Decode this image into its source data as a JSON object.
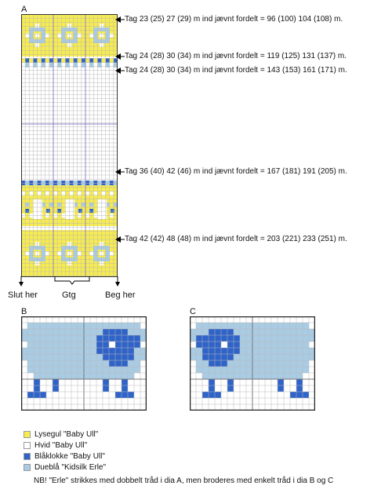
{
  "chart_a": {
    "label": "A",
    "annotations": [
      "Tag 23 (25) 27 (29) m ind jævnt fordelt = 96 (100) 104 (108) m.",
      "Tag 24 (28) 30 (34) m ind jævnt fordelt = 119 (125) 131 (137) m.",
      "Tag 24 (28) 30 (34) m ind jævnt fordelt = 143 (153) 161 (171) m.",
      "Tag 36 (40) 42 (46) m ind jævnt fordelt = 167 (181) 191 (205) m.",
      "Tag 42 (42) 48 (48) m ind jævnt fordelt = 203 (221) 233 (251) m."
    ],
    "start_label": "Slut her",
    "repeat_label": "Gtg",
    "end_label": "Beg her"
  },
  "chart_b": {
    "label": "B"
  },
  "chart_c": {
    "label": "C"
  },
  "legend": [
    {
      "text": "Lysegul \"Baby Ull\"",
      "color": "#f7ec4f"
    },
    {
      "text": "Hvid \"Baby Ull\"",
      "color": "#ffffff"
    },
    {
      "text": "Blåklokke \"Baby Ull\"",
      "color": "#2f63c8"
    },
    {
      "text": "Dueblå \"Kidsilk Erle\"",
      "color": "#a9cbe3"
    }
  ],
  "note": "NB! \"Erle\" strikkes med dobbelt tråd i dia A, men broderes med enkelt tråd i dia B og C",
  "colors": {
    "yellow": "#f7ec4f",
    "white": "#ffffff",
    "blue": "#2f63c8",
    "lightblue": "#a9cbe3",
    "grid": "#b9b9b9",
    "purple": "#8d86c9"
  }
}
